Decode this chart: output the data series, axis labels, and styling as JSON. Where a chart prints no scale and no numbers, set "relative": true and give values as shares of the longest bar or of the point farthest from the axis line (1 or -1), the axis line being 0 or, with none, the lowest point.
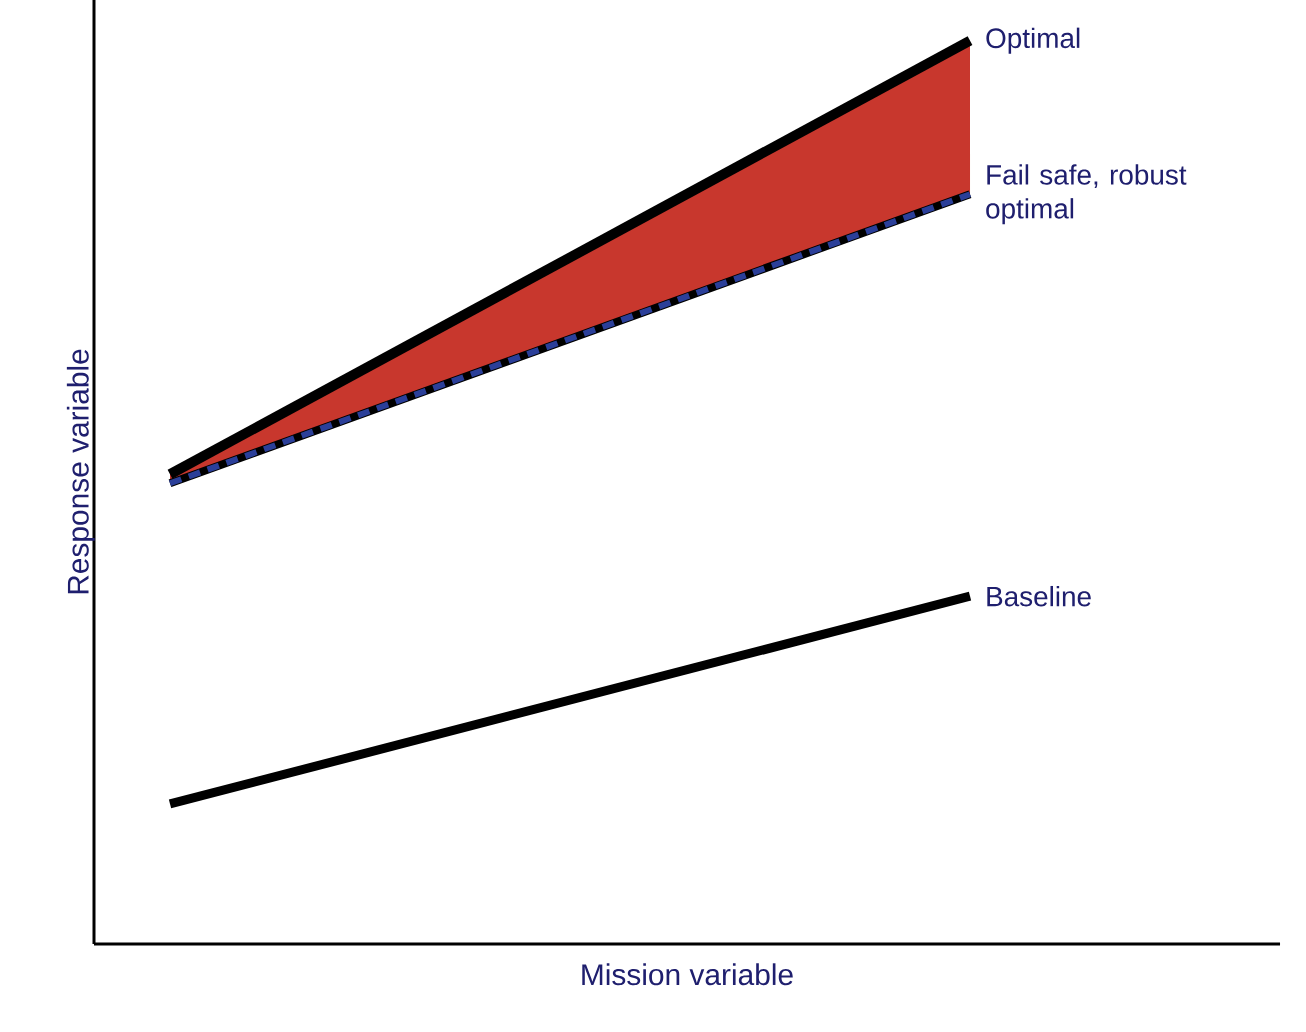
{
  "chart_data": {
    "type": "line",
    "xlabel": "Mission variable",
    "ylabel": "Response variable",
    "categories": [
      null,
      null
    ],
    "relative": true,
    "tick_labels": false,
    "series": [
      {
        "name": "Optimal",
        "color": "#000000",
        "values": [
          0.52,
          1.0
        ],
        "lower": [
          0.51,
          0.83
        ],
        "upper": [
          0.52,
          1.0
        ]
      },
      {
        "name": "Fail safe, robust optimal",
        "color": "#2b3f99",
        "line_style": "dashed",
        "values": [
          0.51,
          0.83
        ]
      },
      {
        "name": "Baseline",
        "color": "#000000",
        "values": [
          0.155,
          0.385
        ]
      }
    ]
  }
}
